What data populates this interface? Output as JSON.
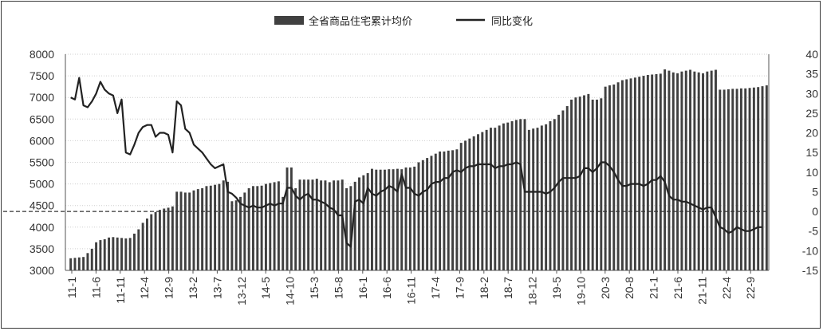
{
  "chart_data": {
    "type": "bar+line",
    "legend": {
      "position": "top-center",
      "items": [
        {
          "label": "全省商品住宅累计均价",
          "kind": "bar",
          "color": "#404040"
        },
        {
          "label": "同比变化",
          "kind": "line",
          "color": "#222222"
        }
      ]
    },
    "x_tick_labels": [
      "11-1",
      "11-6",
      "11-11",
      "12-4",
      "12-9",
      "13-2",
      "13-7",
      "13-12",
      "14-5",
      "14-10",
      "15-3",
      "15-8",
      "16-1",
      "16-6",
      "16-11",
      "17-4",
      "17-9",
      "18-2",
      "18-7",
      "18-12",
      "19-5",
      "19-10",
      "20-3",
      "20-8",
      "21-1",
      "21-6",
      "21-11",
      "22-4",
      "22-9"
    ],
    "left_axis": {
      "ylim": [
        3000,
        8000
      ],
      "ticks": [
        3000,
        3500,
        4000,
        4500,
        5000,
        5500,
        6000,
        6500,
        7000,
        7500,
        8000
      ]
    },
    "right_axis": {
      "ylim": [
        -15,
        40
      ],
      "ticks": [
        -15,
        -10,
        -5,
        0,
        5,
        10,
        15,
        20,
        25,
        30,
        35,
        40
      ]
    },
    "reference_line": {
      "axis": "right",
      "value": 0,
      "style": "dashed"
    },
    "gridlines": "horizontal dotted",
    "series": [
      {
        "name": "全省商品住宅累计均价",
        "axis": "left",
        "style": "bar",
        "values": [
          3280,
          3290,
          3300,
          3310,
          3400,
          3500,
          3650,
          3700,
          3720,
          3760,
          3770,
          3760,
          3750,
          3740,
          3750,
          3850,
          3950,
          4100,
          4200,
          4300,
          4350,
          4400,
          4430,
          4450,
          4480,
          4820,
          4820,
          4800,
          4800,
          4850,
          4880,
          4900,
          4950,
          4960,
          4980,
          5000,
          5080,
          5050,
          4600,
          4620,
          4700,
          4800,
          4900,
          4950,
          4950,
          4960,
          5000,
          5020,
          5040,
          5060,
          4700,
          5380,
          5380,
          4900,
          5100,
          5100,
          5100,
          5100,
          5120,
          5080,
          5080,
          5040,
          5080,
          5080,
          5100,
          4900,
          4950,
          5050,
          5150,
          5200,
          5250,
          5350,
          5330,
          5330,
          5330,
          5340,
          5340,
          5350,
          5340,
          5380,
          5380,
          5400,
          5500,
          5550,
          5600,
          5650,
          5700,
          5750,
          5750,
          5770,
          5780,
          5800,
          5950,
          6000,
          6050,
          6100,
          6150,
          6200,
          6250,
          6300,
          6300,
          6350,
          6400,
          6420,
          6450,
          6480,
          6500,
          6500,
          6250,
          6280,
          6300,
          6350,
          6380,
          6450,
          6500,
          6600,
          6700,
          6800,
          6950,
          7000,
          7020,
          7050,
          7080,
          6950,
          6950,
          6980,
          7250,
          7280,
          7300,
          7350,
          7400,
          7420,
          7440,
          7460,
          7480,
          7500,
          7520,
          7530,
          7540,
          7550,
          7650,
          7620,
          7580,
          7560,
          7600,
          7620,
          7640,
          7600,
          7580,
          7560,
          7600,
          7620,
          7640,
          7180,
          7180,
          7190,
          7200,
          7200,
          7210,
          7210,
          7220,
          7230,
          7240,
          7260,
          7280
        ]
      },
      {
        "name": "同比变化",
        "axis": "right",
        "style": "line",
        "values": [
          29,
          28.5,
          34,
          27,
          26.5,
          28,
          30,
          33,
          31,
          30,
          29.5,
          25,
          28.5,
          15,
          14.5,
          17,
          20,
          21.5,
          22,
          22,
          19,
          20,
          20,
          19.5,
          15,
          28,
          27,
          21,
          20,
          17,
          16,
          15,
          13.5,
          12,
          11,
          11.5,
          12,
          5,
          4.5,
          3.5,
          2,
          1.5,
          1,
          1.5,
          1,
          1,
          1.5,
          2,
          1.5,
          2,
          2,
          6,
          6,
          4,
          3,
          4,
          4.5,
          3,
          3,
          2.5,
          2,
          1,
          0.5,
          -1,
          -1,
          -8,
          -9,
          2.5,
          3,
          2,
          6,
          4.5,
          4,
          5,
          5.5,
          6.5,
          6,
          5,
          9.5,
          6,
          6,
          4.5,
          4,
          5,
          5.5,
          7,
          7.5,
          7.5,
          8.5,
          8.5,
          10,
          10.5,
          10,
          11,
          11.5,
          11.5,
          12,
          12,
          12,
          12,
          11,
          11.5,
          11.5,
          12,
          12,
          12.5,
          12,
          5,
          5,
          5,
          5,
          5,
          4.5,
          5,
          6,
          7.5,
          8.5,
          8.5,
          8.5,
          8.5,
          9,
          11,
          11,
          10,
          11,
          12.5,
          12.5,
          11.5,
          10,
          8,
          6.5,
          6.5,
          7,
          7,
          7,
          6.5,
          7,
          8,
          8,
          9,
          7.5,
          4,
          3,
          3,
          2.5,
          2.5,
          2,
          1.5,
          1,
          0.5,
          1,
          1,
          -1.5,
          -4,
          -4.5,
          -5.5,
          -5,
          -4,
          -4.5,
          -5,
          -5,
          -4.5,
          -4,
          -4
        ]
      }
    ]
  }
}
